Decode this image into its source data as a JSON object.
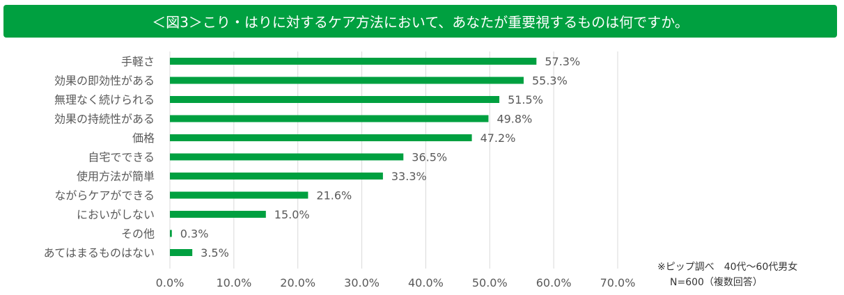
{
  "chart_data": {
    "type": "bar",
    "orientation": "horizontal",
    "title": "＜図3＞こり・はりに対するケア方法において、あなたが重要視するものは何ですか。",
    "categories": [
      "手軽さ",
      "効果の即効性がある",
      "無理なく続けられる",
      "効果の持続性がある",
      "価格",
      "自宅でできる",
      "使用方法が簡単",
      "ながらケアができる",
      "においがしない",
      "その他",
      "あてはまるものはない"
    ],
    "values": [
      57.3,
      55.3,
      51.5,
      49.8,
      47.2,
      36.5,
      33.3,
      21.6,
      15.0,
      0.3,
      3.5
    ],
    "data_labels": [
      "57.3%",
      "55.3%",
      "51.5%",
      "49.8%",
      "47.2%",
      "36.5%",
      "33.3%",
      "21.6%",
      "15.0%",
      "0.3%",
      "3.5%"
    ],
    "xlim": [
      0,
      70
    ],
    "x_ticks": [
      "0.0%",
      "10.0%",
      "20.0%",
      "30.0%",
      "40.0%",
      "50.0%",
      "60.0%",
      "70.0%"
    ],
    "grid": true,
    "bar_color": "#00A040",
    "xlabel": "",
    "ylabel": ""
  },
  "notes": {
    "source": "※ピップ調べ　40代～60代男女",
    "sample": "N=600（複数回答）"
  }
}
